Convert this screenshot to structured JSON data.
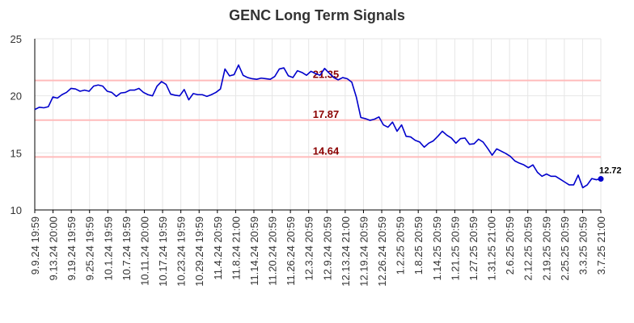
{
  "chart_data": {
    "type": "line",
    "title": "GENC Long Term Signals",
    "xlabel": "",
    "ylabel": "",
    "ylim": [
      10,
      25
    ],
    "y_ticks": [
      10,
      15,
      20,
      25
    ],
    "grid": true,
    "x_tick_labels": [
      "9.9.24 19:59",
      "9.13.24 20:00",
      "9.19.24 19:59",
      "9.25.24 19:59",
      "10.1.24 19:59",
      "10.7.24 19:59",
      "10.11.24 20:00",
      "10.17.24 19:59",
      "10.23.24 19:59",
      "10.29.24 19:59",
      "11.4.24 20:59",
      "11.8.24 21:00",
      "11.14.24 20:59",
      "11.20.24 20:59",
      "11.26.24 20:59",
      "12.3.24 20:59",
      "12.9.24 20:59",
      "12.13.24 21:00",
      "12.19.24 20:59",
      "12.26.24 20:59",
      "1.2.25 20:59",
      "1.8.25 20:59",
      "1.14.25 20:59",
      "1.21.25 20:59",
      "1.27.25 20:59",
      "1.31.25 21:00",
      "2.6.25 20:59",
      "2.12.25 20:59",
      "2.19.25 20:59",
      "2.25.25 20:59",
      "3.3.25 20:59",
      "3.7.25 21:00"
    ],
    "series": [
      {
        "color": "#0000cc",
        "values": [
          18.8,
          19.0,
          18.95,
          19.05,
          19.9,
          19.8,
          20.1,
          20.3,
          20.65,
          20.6,
          20.4,
          20.5,
          20.4,
          20.85,
          20.95,
          20.85,
          20.4,
          20.3,
          19.95,
          20.25,
          20.3,
          20.5,
          20.5,
          20.65,
          20.3,
          20.1,
          20.0,
          20.85,
          21.25,
          21.0,
          20.15,
          20.05,
          20.0,
          20.55,
          19.65,
          20.2,
          20.1,
          20.1,
          19.95,
          20.1,
          20.3,
          20.6,
          22.35,
          21.75,
          21.85,
          22.7,
          21.8,
          21.6,
          21.5,
          21.45,
          21.55,
          21.5,
          21.45,
          21.7,
          22.35,
          22.45,
          21.75,
          21.6,
          22.2,
          22.05,
          21.8,
          22.15,
          21.95,
          21.8,
          22.4,
          22.0,
          21.6,
          21.4,
          21.6,
          21.5,
          21.2,
          19.9,
          18.1,
          18.0,
          17.85,
          17.95,
          18.15,
          17.45,
          17.25,
          17.7,
          16.9,
          17.45,
          16.45,
          16.4,
          16.1,
          15.95,
          15.5,
          15.85,
          16.05,
          16.45,
          16.9,
          16.55,
          16.3,
          15.85,
          16.25,
          16.3,
          15.75,
          15.8,
          16.2,
          15.95,
          15.4,
          14.8,
          15.35,
          15.15,
          14.95,
          14.7,
          14.3,
          14.1,
          13.95,
          13.7,
          13.95,
          13.3,
          12.95,
          13.15,
          12.95,
          12.95,
          12.7,
          12.45,
          12.2,
          12.2,
          13.05,
          11.95,
          12.2,
          12.75,
          12.65,
          12.72
        ]
      }
    ],
    "signal_lines": [
      {
        "value": 21.35,
        "label": "21.35",
        "color": "#ffbbbb"
      },
      {
        "value": 17.87,
        "label": "17.87",
        "color": "#ffbbbb"
      },
      {
        "value": 14.64,
        "label": "14.64",
        "color": "#ffbbbb"
      }
    ],
    "last_value": 12.72,
    "last_label": "12.72",
    "label_color": "#8b0000"
  }
}
